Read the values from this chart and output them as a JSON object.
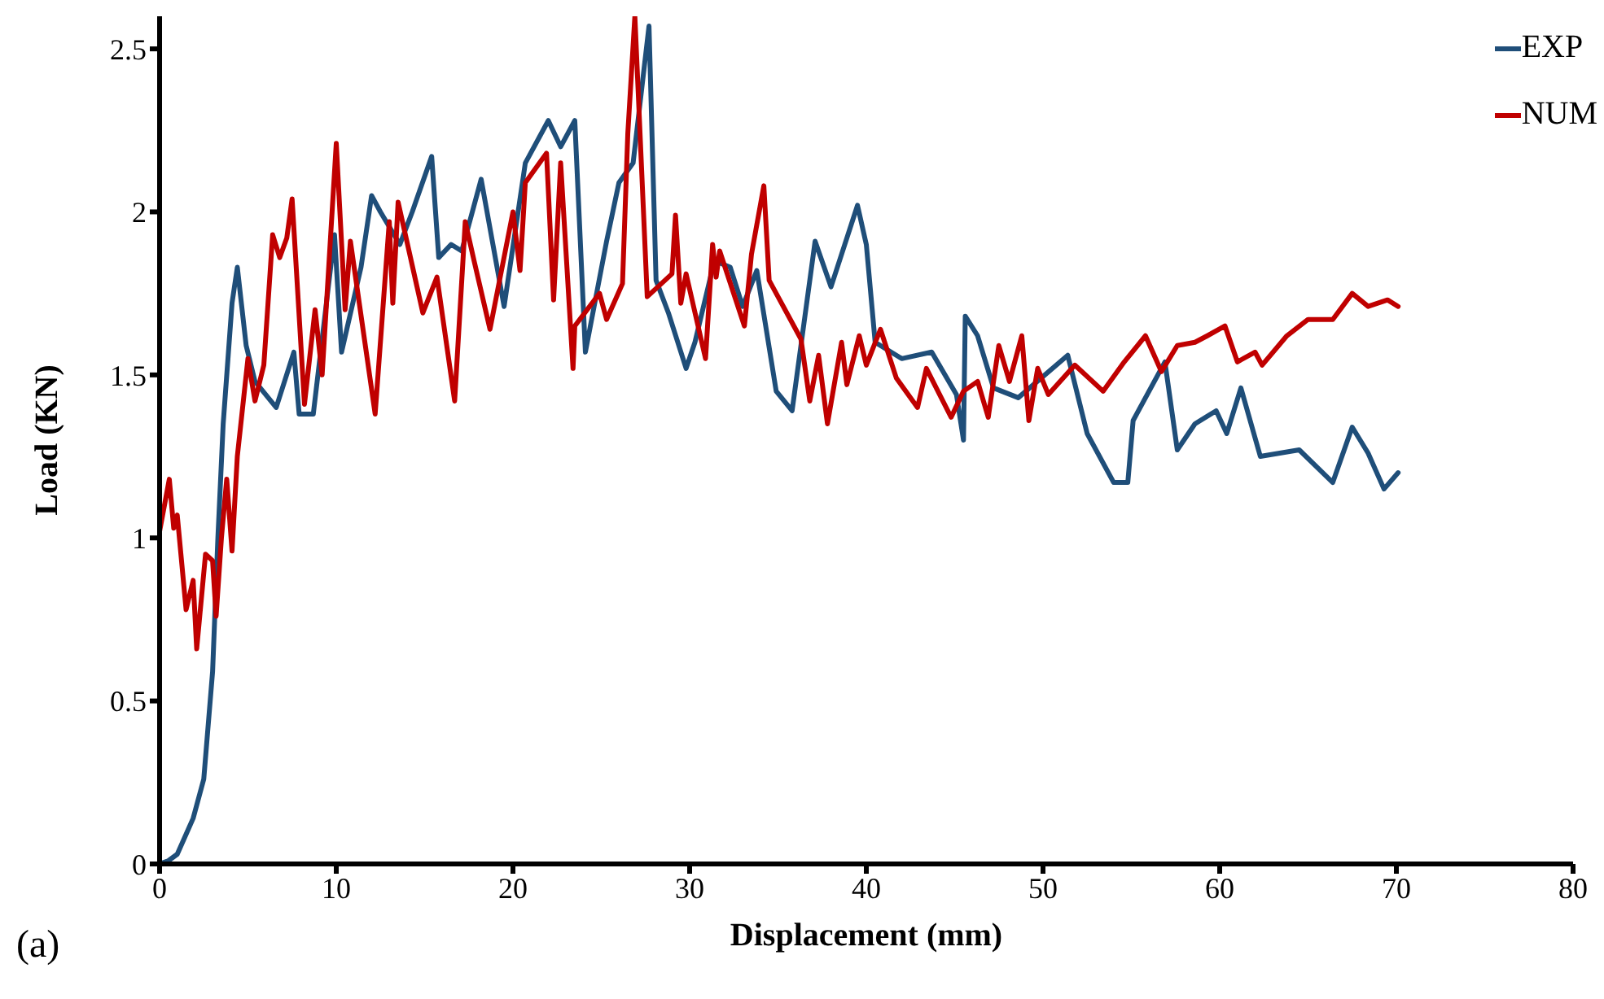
{
  "chart_data": {
    "type": "line",
    "xlabel": "Displacement (mm)",
    "ylabel": "Load (KN)",
    "annotations": [
      "(a)"
    ],
    "xlim": [
      0,
      80
    ],
    "xticks": [
      0,
      10,
      20,
      30,
      40,
      50,
      60,
      70,
      80
    ],
    "ylim": [
      0,
      2.6
    ],
    "yticks": [
      0,
      0.5,
      1,
      1.5,
      2,
      2.5
    ],
    "grid": false,
    "legend": "top right",
    "marker": "none",
    "line_style": "solid",
    "series": [
      {
        "name": "EXP",
        "color": "#1f4e79",
        "x": [
          0,
          0.5,
          1,
          1.9,
          2.5,
          3.0,
          3.3,
          3.6,
          4.1,
          4.4,
          4.9,
          5.4,
          6.6,
          7.6,
          7.9,
          8.7,
          9.9,
          10.3,
          11.4,
          12.0,
          12.5,
          13.6,
          14.3,
          15.4,
          15.8,
          16.5,
          17.1,
          18.2,
          19.5,
          20.7,
          22.0,
          22.7,
          23.5,
          24.1,
          25.3,
          26.0,
          26.8,
          27.7,
          28.1,
          28.8,
          29.8,
          30.3,
          31.4,
          32.3,
          33.0,
          33.8,
          34.9,
          35.8,
          37.1,
          38.0,
          39.5,
          40.0,
          40.5,
          42.0,
          43.7,
          45.1,
          45.5,
          45.6,
          46.3,
          47.2,
          48.6,
          51.4,
          52.5,
          54.0,
          54.8,
          55.1,
          56.9,
          57.6,
          58.6,
          59.8,
          60.4,
          61.2,
          62.3,
          64.5,
          66.4,
          67.5,
          68.4,
          69.3,
          70.1
        ],
        "values": [
          0,
          0.01,
          0.03,
          0.14,
          0.26,
          0.59,
          1.0,
          1.35,
          1.72,
          1.83,
          1.59,
          1.48,
          1.4,
          1.57,
          1.38,
          1.38,
          1.93,
          1.57,
          1.83,
          2.05,
          2.0,
          1.9,
          2.0,
          2.17,
          1.86,
          1.9,
          1.88,
          2.1,
          1.71,
          2.15,
          2.28,
          2.2,
          2.28,
          1.57,
          1.91,
          2.09,
          2.15,
          2.57,
          1.79,
          1.69,
          1.52,
          1.6,
          1.85,
          1.83,
          1.71,
          1.82,
          1.45,
          1.39,
          1.91,
          1.77,
          2.02,
          1.9,
          1.6,
          1.55,
          1.57,
          1.44,
          1.3,
          1.68,
          1.62,
          1.46,
          1.43,
          1.56,
          1.32,
          1.17,
          1.17,
          1.36,
          1.54,
          1.27,
          1.35,
          1.39,
          1.32,
          1.46,
          1.25,
          1.27,
          1.17,
          1.34,
          1.26,
          1.15,
          1.2
        ]
      },
      {
        "name": "NUM",
        "color": "#c00000",
        "x": [
          0,
          0,
          0.55,
          0.8,
          1.0,
          1.5,
          1.9,
          2.1,
          2.6,
          3.0,
          3.2,
          3.5,
          3.8,
          4.1,
          4.4,
          5.0,
          5.4,
          5.9,
          6.4,
          6.8,
          7.2,
          7.5,
          8.2,
          8.8,
          9.2,
          10.0,
          10.5,
          10.8,
          12.2,
          13.0,
          13.2,
          13.5,
          14.9,
          15.7,
          16.7,
          17.3,
          17.8,
          18.7,
          20.0,
          20.4,
          20.7,
          21.9,
          22.3,
          22.7,
          23.4,
          23.5,
          24.9,
          25.3,
          26.2,
          26.5,
          26.9,
          27.6,
          29.0,
          29.2,
          29.5,
          29.8,
          30.9,
          31.3,
          31.5,
          31.7,
          33.1,
          33.5,
          34.2,
          34.5,
          36.3,
          36.8,
          37.3,
          37.8,
          38.6,
          38.9,
          39.6,
          40.0,
          40.8,
          41.7,
          42.9,
          43.4,
          44.8,
          45.5,
          46.3,
          46.9,
          47.5,
          48.1,
          48.8,
          49.2,
          49.7,
          50.3,
          51.8,
          53.4,
          54.6,
          55.8,
          56.7,
          57.6,
          58.6,
          59.3,
          60.3,
          61.0,
          62.0,
          62.4,
          63.8,
          65.0,
          66.4,
          67.5,
          68.4,
          69.5,
          70.1
        ],
        "values": [
          0,
          1.02,
          1.18,
          1.03,
          1.07,
          0.78,
          0.87,
          0.66,
          0.95,
          0.93,
          0.76,
          1.0,
          1.18,
          0.96,
          1.25,
          1.55,
          1.42,
          1.53,
          1.93,
          1.86,
          1.92,
          2.04,
          1.41,
          1.7,
          1.5,
          2.21,
          1.7,
          1.91,
          1.38,
          1.97,
          1.72,
          2.03,
          1.69,
          1.8,
          1.42,
          1.97,
          1.85,
          1.64,
          2.0,
          1.82,
          2.09,
          2.18,
          1.73,
          2.15,
          1.52,
          1.65,
          1.75,
          1.67,
          1.78,
          2.24,
          2.6,
          1.74,
          1.81,
          1.99,
          1.72,
          1.81,
          1.55,
          1.9,
          1.8,
          1.88,
          1.65,
          1.87,
          2.08,
          1.79,
          1.61,
          1.42,
          1.56,
          1.35,
          1.6,
          1.47,
          1.62,
          1.53,
          1.64,
          1.49,
          1.4,
          1.52,
          1.37,
          1.45,
          1.48,
          1.37,
          1.59,
          1.48,
          1.62,
          1.36,
          1.52,
          1.44,
          1.53,
          1.45,
          1.54,
          1.62,
          1.51,
          1.59,
          1.6,
          1.62,
          1.65,
          1.54,
          1.57,
          1.53,
          1.62,
          1.67,
          1.67,
          1.75,
          1.71,
          1.73,
          1.71
        ]
      }
    ]
  }
}
